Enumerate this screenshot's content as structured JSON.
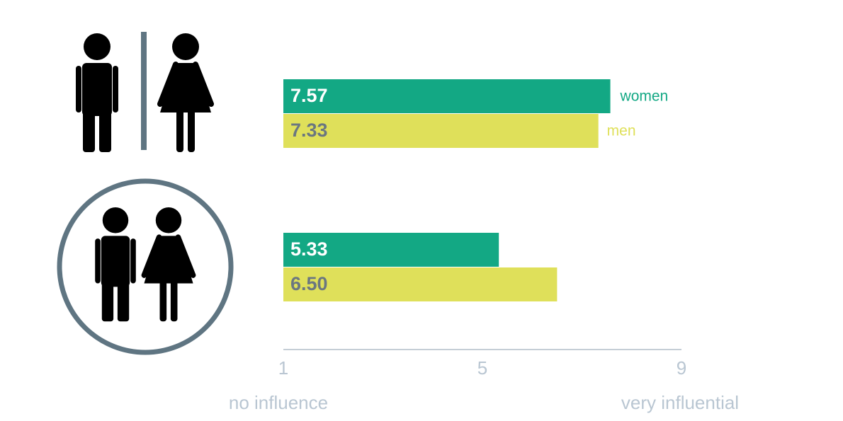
{
  "chart_data": {
    "type": "hbar",
    "categories": [
      null,
      null
    ],
    "series": [
      {
        "name": "women",
        "color": "#13a884",
        "values": [
          7.57,
          5.33
        ],
        "value_labels": [
          "7.57",
          "5.33"
        ]
      },
      {
        "name": "men",
        "color": "#dfe05a",
        "values": [
          7.33,
          6.5
        ],
        "value_labels": [
          "7.33",
          "6.50"
        ]
      }
    ],
    "xlim": [
      1,
      9
    ],
    "xticks": [
      1,
      5,
      9
    ],
    "annotations": [
      "no influence",
      "very influential"
    ]
  }
}
